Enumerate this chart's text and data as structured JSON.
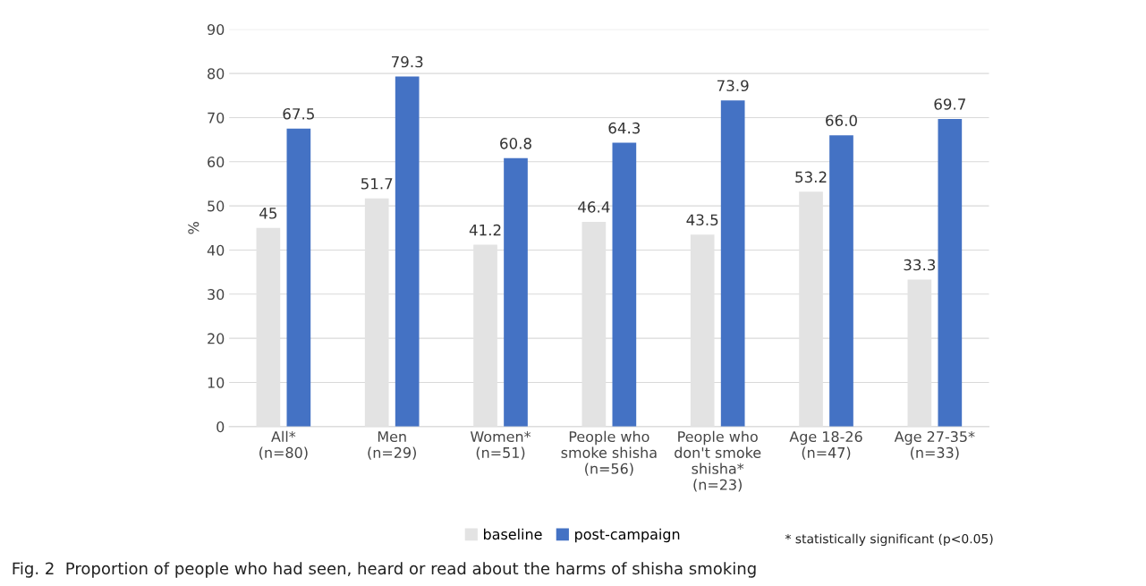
{
  "chart_data": {
    "type": "bar",
    "title": "Fig. 2  Proportion of people who had seen, heard or read about the harms of shisha smoking",
    "ylabel": "%",
    "categories": [
      "All*\n(n=80)",
      "Men\n(n=29)",
      "Women*\n(n=51)",
      "People who\nsmoke shisha\n(n=56)",
      "People who\ndon't smoke\nshisha*\n(n=23)",
      "Age 18-26\n(n=47)",
      "Age 27-35*\n(n=33)"
    ],
    "series": [
      {
        "name": "baseline",
        "color": "#e3e3e3",
        "values": [
          45,
          51.7,
          41.2,
          46.4,
          43.5,
          53.2,
          33.3
        ],
        "value_labels": [
          "45",
          "51.7",
          "41.2",
          "46.4",
          "43.5",
          "53.2",
          "33.3"
        ]
      },
      {
        "name": "post-campaign",
        "color": "#4472c4",
        "values": [
          67.5,
          79.3,
          60.8,
          64.3,
          73.9,
          66.0,
          69.7
        ],
        "value_labels": [
          "67.5",
          "79.3",
          "60.8",
          "64.3",
          "73.9",
          "66.0",
          "69.7"
        ]
      }
    ],
    "ylim": [
      0,
      90
    ],
    "yticks": [
      0,
      10,
      20,
      30,
      40,
      50,
      60,
      70,
      80,
      90
    ],
    "grid": "y",
    "legend": "bottom",
    "annotations": [
      "* statistically significant (p<0.05)"
    ]
  }
}
